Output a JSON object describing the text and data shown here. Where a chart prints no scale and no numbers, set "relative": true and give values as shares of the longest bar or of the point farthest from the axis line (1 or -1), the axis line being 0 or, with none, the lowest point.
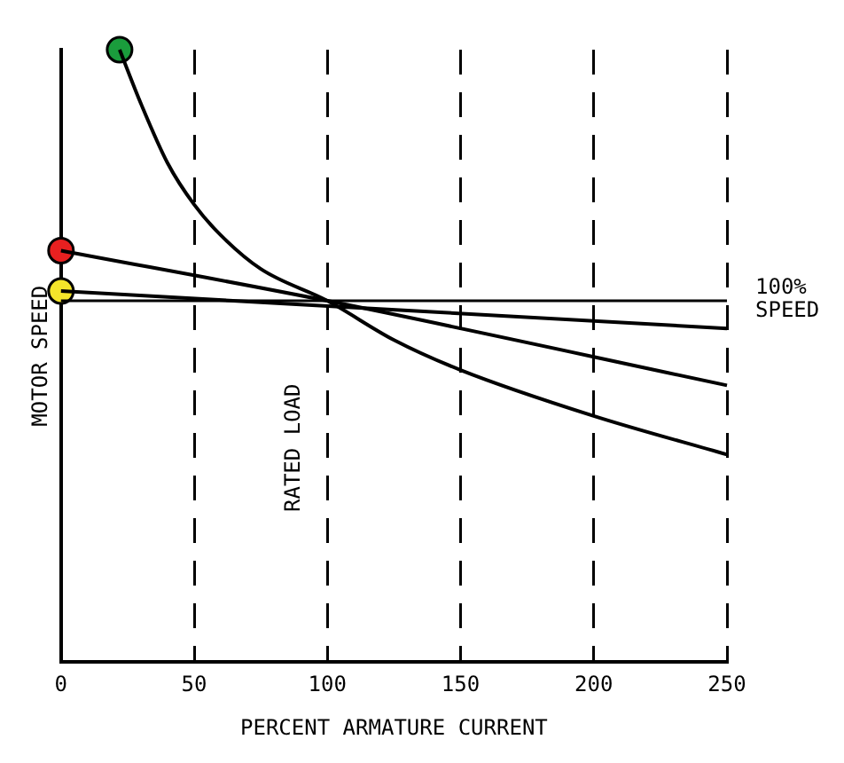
{
  "chart_data": {
    "type": "line",
    "relative": true,
    "xlabel": "PERCENT ARMATURE CURRENT",
    "ylabel": "MOTOR SPEED",
    "xlim": [
      0,
      250
    ],
    "xticks": [
      0,
      50,
      100,
      150,
      200,
      250
    ],
    "grid": "x",
    "series": [
      {
        "color": "#000000",
        "x": [
          22,
          30,
          40,
          50,
          60,
          75,
          100,
          125,
          150,
          200,
          250
        ],
        "values": [
          1.0,
          0.912,
          0.815,
          0.747,
          0.697,
          0.642,
          0.59,
          0.526,
          0.477,
          0.402,
          0.339
        ]
      },
      {
        "color": "#000000",
        "x": [
          0,
          100,
          250
        ],
        "values": [
          0.672,
          0.59,
          0.452
        ]
      },
      {
        "color": "#000000",
        "x": [
          0,
          250
        ],
        "values": [
          0.606,
          0.545
        ]
      },
      {
        "type": "scatter",
        "color": "#1a9c3c",
        "x": [
          22
        ],
        "values": [
          1.0
        ]
      },
      {
        "type": "scatter",
        "color": "#e82020",
        "x": [
          0
        ],
        "values": [
          0.672
        ]
      },
      {
        "type": "scatter",
        "color": "#f5e52a",
        "x": [
          0
        ],
        "values": [
          0.606
        ]
      }
    ],
    "ref_lines": [
      {
        "axis": "y",
        "value": 0.59,
        "label": "100% SPEED"
      }
    ],
    "annotations": [
      "RATED LOAD"
    ]
  }
}
